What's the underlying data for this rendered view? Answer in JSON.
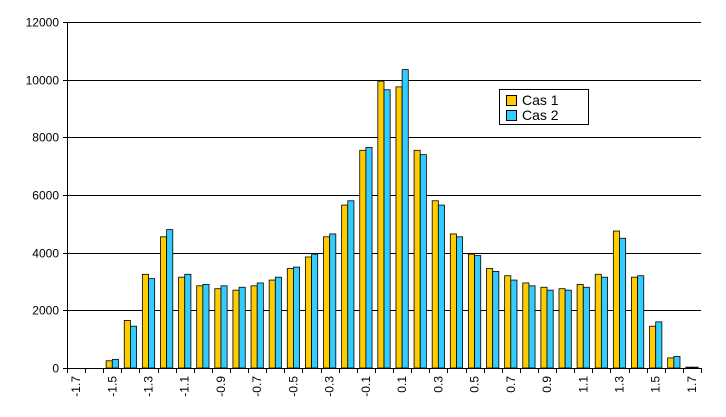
{
  "chart_data": {
    "type": "bar",
    "categories": [
      "-1.7",
      "-1.6",
      "-1.5",
      "-1.4",
      "-1.3",
      "-1.2",
      "-1.1",
      "-1",
      "-0.9",
      "-0.8",
      "-0.7",
      "-0.6",
      "-0.5",
      "-0.4",
      "-0.3",
      "-0.2",
      "-0.1",
      "0",
      "0.1",
      "0.2",
      "0.3",
      "0.4",
      "0.5",
      "0.6",
      "0.7",
      "0.8",
      "0.9",
      "1",
      "1.1",
      "1.2",
      "1.3",
      "1.4",
      "1.5",
      "1.6",
      "1.7"
    ],
    "x_tick_labels": [
      "-1.7",
      "-1.5",
      "-1.3",
      "-1.1",
      "-0.9",
      "-0.7",
      "-0.5",
      "-0.3",
      "-0.1",
      "0.1",
      "0.3",
      "0.5",
      "0.7",
      "0.9",
      "1.1",
      "1.3",
      "1.5",
      "1.7"
    ],
    "y_ticks": [
      "0",
      "2000",
      "4000",
      "6000",
      "8000",
      "10000",
      "12000"
    ],
    "ylim": [
      0,
      12000
    ],
    "grid": "horizontal",
    "legend_position": "top-right",
    "title": "",
    "xlabel": "",
    "ylabel": "",
    "series": [
      {
        "name": "Cas 1",
        "color": "#FFCC00",
        "values": [
          0,
          0,
          250,
          1650,
          3250,
          4550,
          3150,
          2850,
          2750,
          2700,
          2850,
          3050,
          3450,
          3850,
          4550,
          5650,
          7550,
          9950,
          9750,
          7550,
          5800,
          4650,
          3950,
          3450,
          3200,
          2950,
          2800,
          2750,
          2900,
          3250,
          4750,
          3150,
          1450,
          350,
          30
        ]
      },
      {
        "name": "Cas 2",
        "color": "#33CCFF",
        "values": [
          0,
          0,
          300,
          1450,
          3100,
          4800,
          3250,
          2900,
          2850,
          2800,
          2950,
          3150,
          3500,
          3950,
          4650,
          5800,
          7650,
          9650,
          10350,
          7400,
          5650,
          4550,
          3900,
          3350,
          3050,
          2850,
          2700,
          2700,
          2800,
          3150,
          4500,
          3200,
          1600,
          400,
          30
        ]
      }
    ]
  }
}
